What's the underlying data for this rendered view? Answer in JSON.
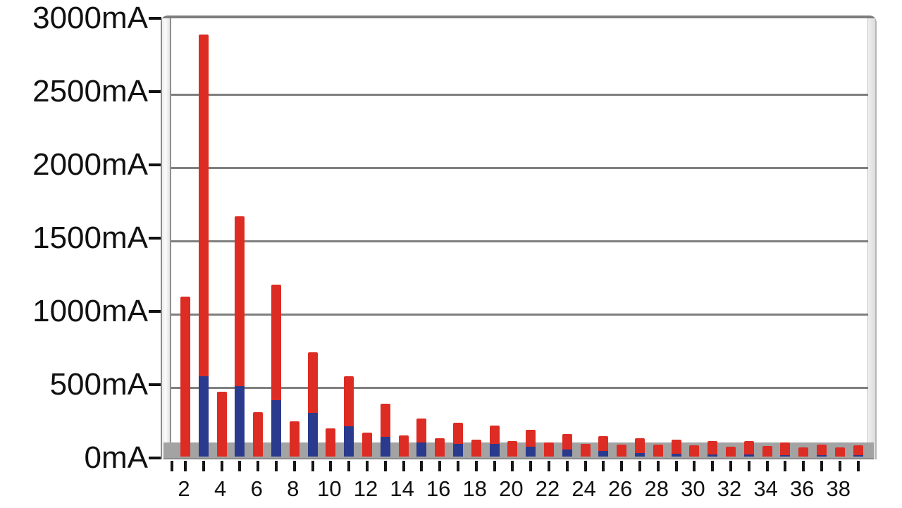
{
  "chart_data": {
    "type": "bar",
    "stacked": true,
    "categories": [
      2,
      3,
      4,
      5,
      6,
      7,
      8,
      9,
      10,
      11,
      12,
      13,
      14,
      15,
      16,
      17,
      18,
      19,
      20,
      21,
      22,
      23,
      24,
      25,
      26,
      27,
      28,
      29,
      30,
      31,
      32,
      33,
      34,
      35,
      36,
      37,
      38,
      39
    ],
    "series": [
      {
        "name": "blue-lower-segment",
        "color": "#2a3a8d",
        "values": [
          0,
          550,
          0,
          480,
          0,
          385,
          0,
          300,
          0,
          205,
          0,
          135,
          0,
          95,
          0,
          85,
          0,
          85,
          0,
          65,
          0,
          50,
          0,
          40,
          0,
          25,
          0,
          20,
          0,
          15,
          0,
          15,
          0,
          12,
          0,
          10,
          0,
          10
        ]
      },
      {
        "name": "red-upper-segment",
        "color": "#dd2c23",
        "values": [
          1090,
          2330,
          440,
          1160,
          305,
          790,
          240,
          410,
          190,
          345,
          165,
          225,
          145,
          165,
          125,
          145,
          115,
          125,
          105,
          120,
          95,
          105,
          85,
          100,
          80,
          100,
          80,
          95,
          75,
          90,
          65,
          90,
          70,
          83,
          62,
          70,
          62,
          65
        ]
      }
    ],
    "stack_totals": [
      1090,
      2880,
      440,
      1640,
      305,
      1175,
      240,
      710,
      190,
      550,
      165,
      360,
      145,
      260,
      125,
      230,
      115,
      210,
      105,
      185,
      95,
      155,
      85,
      140,
      80,
      125,
      80,
      115,
      75,
      105,
      65,
      105,
      70,
      95,
      62,
      80,
      62,
      75
    ],
    "y_axis": {
      "unit": "mA",
      "min": 0,
      "max": 3000,
      "tick_step": 500,
      "ticks": [
        {
          "value": 3000,
          "label": "3000mA"
        },
        {
          "value": 2500,
          "label": "2500mA"
        },
        {
          "value": 2000,
          "label": "2000mA"
        },
        {
          "value": 1500,
          "label": "1500mA"
        },
        {
          "value": 1000,
          "label": "1000mA"
        },
        {
          "value": 500,
          "label": "500mA"
        },
        {
          "value": 0,
          "label": "0mA"
        }
      ]
    },
    "x_axis": {
      "tick_every_category": true,
      "labeled_ticks": [
        2,
        4,
        6,
        8,
        10,
        12,
        14,
        16,
        18,
        20,
        22,
        24,
        26,
        28,
        30,
        32,
        34,
        36,
        38
      ]
    },
    "grid": true,
    "legend": false
  },
  "colors": {
    "red_bar": "#dd2c23",
    "blue_bar": "#2a3a8d",
    "gridline": "#7f7f7f",
    "frame": "#8d8d8d",
    "baseline_band": "#a3a3a3",
    "text": "#111111",
    "background": "#ffffff"
  }
}
